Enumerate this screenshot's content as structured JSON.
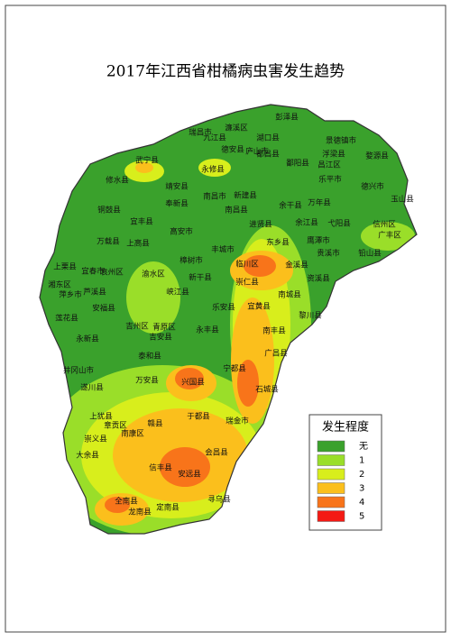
{
  "title": "2017年江西省柑橘病虫害发生趋势",
  "legend": {
    "title": "发生程度",
    "items": [
      {
        "label": "无",
        "color": "#3aa12c"
      },
      {
        "label": "1",
        "color": "#9ade29"
      },
      {
        "label": "2",
        "color": "#d8ee1c"
      },
      {
        "label": "3",
        "color": "#fbbf1c"
      },
      {
        "label": "4",
        "color": "#f8741a"
      },
      {
        "label": "5",
        "color": "#f41a14"
      }
    ]
  },
  "counties": [
    "彭泽县",
    "瑞昌市",
    "濂溪区",
    "湖口县",
    "九江县",
    "德安县",
    "庐山市",
    "都昌县",
    "武宁县",
    "永修县",
    "修水县",
    "景德镇市",
    "浮梁县",
    "鄱阳县",
    "昌江区",
    "婺源县",
    "乐平市",
    "德兴市",
    "玉山县",
    "靖安县",
    "奉新县",
    "南昌市",
    "新建县",
    "余干县",
    "万年县",
    "铜鼓县",
    "宜丰县",
    "南昌县",
    "进贤县",
    "余江县",
    "弋阳县",
    "信州区",
    "广丰区",
    "高安市",
    "万载县",
    "上高县",
    "东乡县",
    "鹰潭市",
    "贵溪市",
    "铅山县",
    "丰城市",
    "樟树市",
    "临川区",
    "金溪县",
    "上栗县",
    "宜春市",
    "袁州区",
    "渝水区",
    "新干县",
    "崇仁县",
    "资溪县",
    "湘东区",
    "芦溪县",
    "萍乡市",
    "峡江县",
    "南城县",
    "安福县",
    "乐安县",
    "宜黄县",
    "黎川县",
    "莲花县",
    "吉州区",
    "青原区",
    "吉安县",
    "永丰县",
    "南丰县",
    "永新县",
    "泰和县",
    "广昌县",
    "宁都县",
    "井冈山市",
    "万安县",
    "兴国县",
    "遂川县",
    "石城县",
    "上犹县",
    "章贡区",
    "赣县",
    "于都县",
    "瑞金市",
    "南康区",
    "崇义县",
    "会昌县",
    "大余县",
    "信丰县",
    "安远县",
    "全南县",
    "定南县",
    "寻乌县",
    "龙南县"
  ]
}
